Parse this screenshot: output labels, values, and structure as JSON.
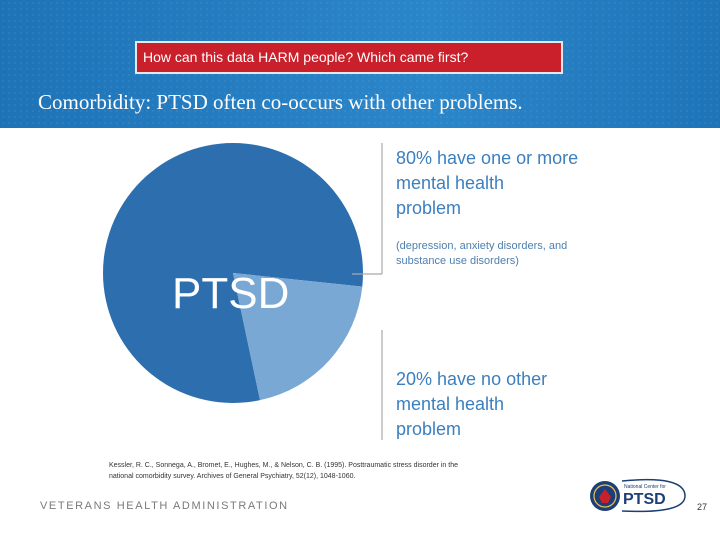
{
  "header": {
    "callout": "How can this data HARM people? Which came first?",
    "title": "Comorbidity: PTSD often co-occurs with other problems."
  },
  "chart_data": {
    "type": "pie",
    "title": "Comorbidity: PTSD often co-occurs with other problems.",
    "center_label": "PTSD",
    "slices": [
      {
        "name": "80% have one or more mental health problem",
        "value": 80,
        "color": "#2d6eaf",
        "note": "(depression, anxiety disorders, and substance use disorders)"
      },
      {
        "name": "20% have no other mental health problem",
        "value": 20,
        "color": "#7aa8d4"
      }
    ],
    "annotations": {
      "slice_1": [
        "80% have one or more",
        "mental health",
        "problem"
      ],
      "slice_1_note": [
        "(depression, anxiety disorders, and",
        "substance use disorders)"
      ],
      "slice_2": [
        "20% have no other",
        "mental health",
        "problem"
      ]
    }
  },
  "citation": {
    "line1": "Kessler, R. C., Sonnega, A., Bromet, E., Hughes, M., & Nelson, C. B. (1995). Posttraumatic stress disorder in the",
    "line2": "national comorbidity survey. Archives of General Psychiatry, 52(12), 1048-1060."
  },
  "footer": {
    "agency": "VETERANS HEALTH ADMINISTRATION",
    "logo_top": "National Center for",
    "logo_main": "PTSD",
    "page_number": "27"
  },
  "colors": {
    "header_blue": "#1e73b7",
    "callout_red": "#c9202b",
    "accent_text": "#3b7fbf",
    "divider": "#a9a9a9"
  }
}
